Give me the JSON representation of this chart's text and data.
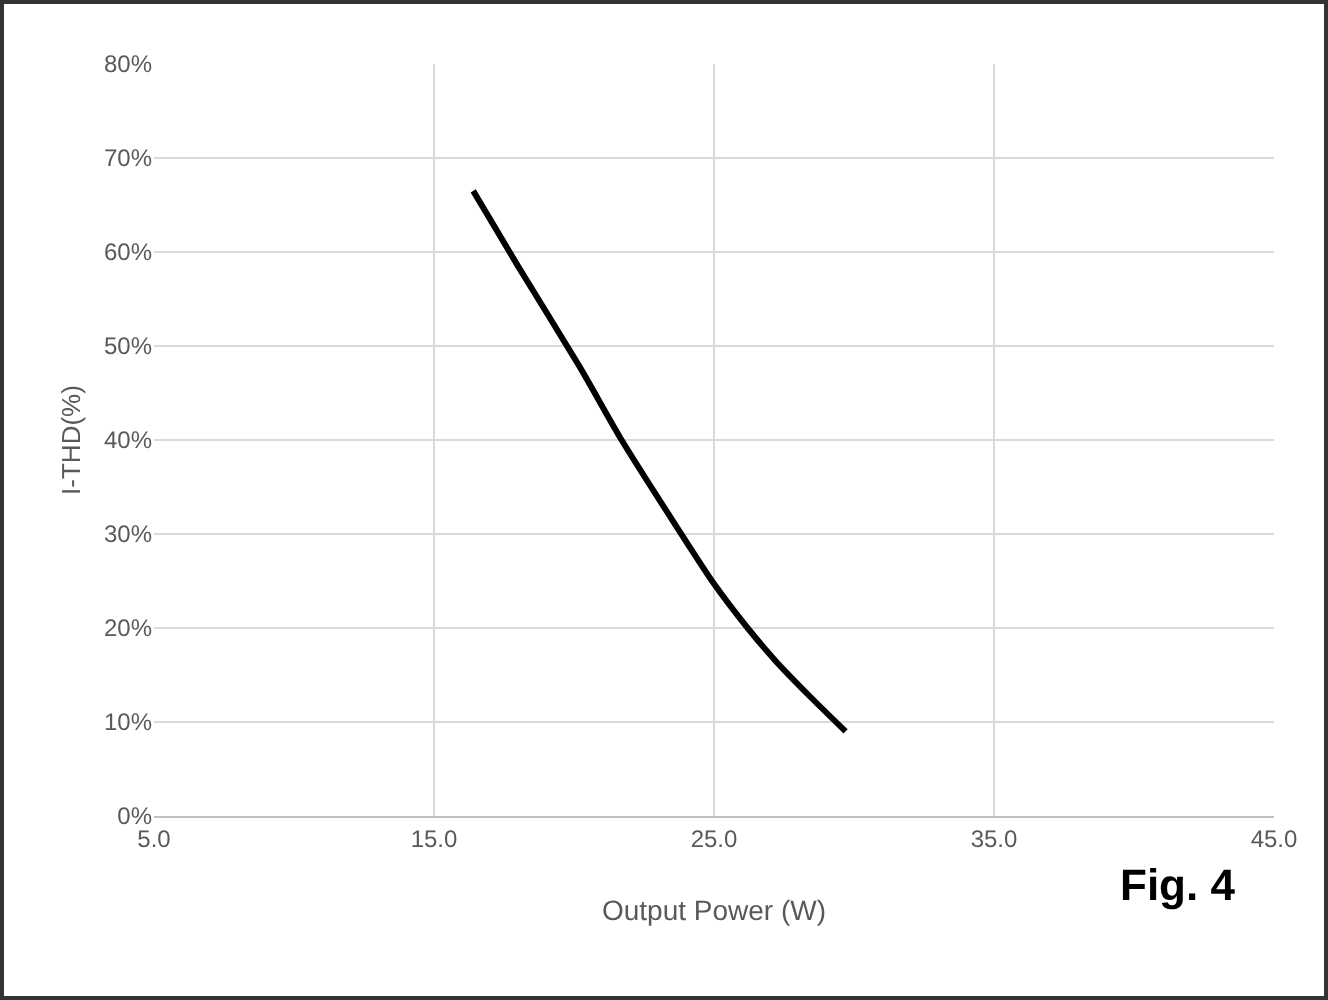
{
  "chart_data": {
    "type": "line",
    "xlabel": "Output Power (W)",
    "ylabel": "I-THD(%)",
    "annotations": [
      "Fig. 4"
    ],
    "series": [
      {
        "color": "#000000",
        "x": [
          16.4,
          18,
          20.2,
          21.7,
          23.4,
          25,
          26.2,
          27.2,
          28.5,
          29.7
        ],
        "values": [
          66.5,
          58.5,
          47.8,
          40,
          32,
          24.7,
          20,
          16.5,
          12.5,
          9
        ]
      }
    ],
    "xlim": [
      5,
      45
    ],
    "xticks": [
      {
        "value": 5,
        "label": "5.0"
      },
      {
        "value": 15,
        "label": "15.0"
      },
      {
        "value": 25,
        "label": "25.0"
      },
      {
        "value": 35,
        "label": "35.0"
      },
      {
        "value": 45,
        "label": "45.0"
      }
    ],
    "ylim": [
      0,
      80
    ],
    "yticks": [
      {
        "value": 0,
        "label": "0%"
      },
      {
        "value": 10,
        "label": "10%"
      },
      {
        "value": 20,
        "label": "20%"
      },
      {
        "value": 30,
        "label": "30%"
      },
      {
        "value": 40,
        "label": "40%"
      },
      {
        "value": 50,
        "label": "50%"
      },
      {
        "value": 60,
        "label": "60%"
      },
      {
        "value": 70,
        "label": "70%"
      },
      {
        "value": 80,
        "label": "80%"
      }
    ],
    "grid": true,
    "marker": "none",
    "line_style": "solid"
  }
}
